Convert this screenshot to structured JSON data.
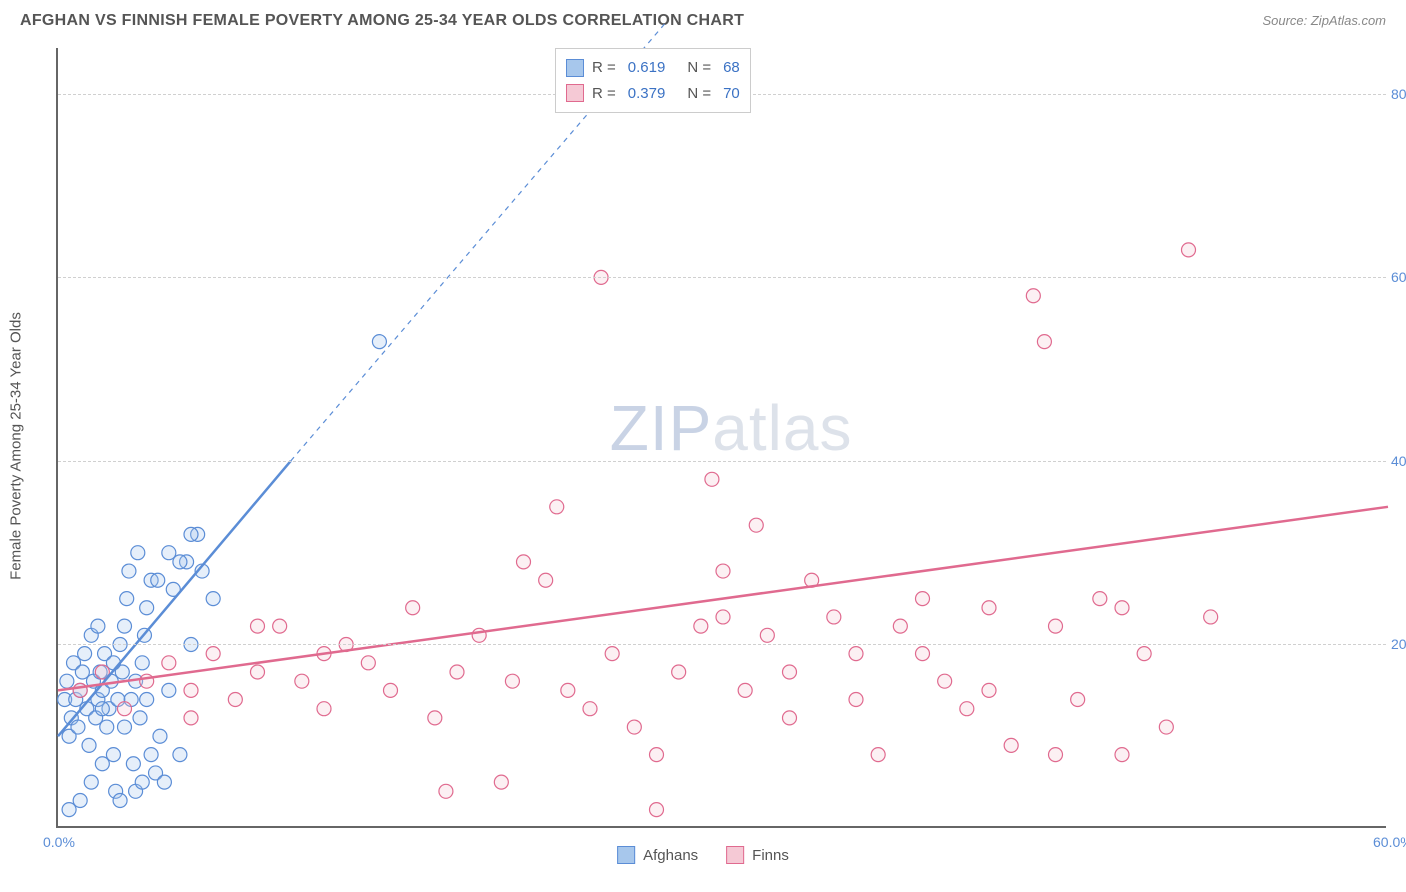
{
  "title": "AFGHAN VS FINNISH FEMALE POVERTY AMONG 25-34 YEAR OLDS CORRELATION CHART",
  "source": "Source: ZipAtlas.com",
  "watermark_a": "ZIP",
  "watermark_b": "atlas",
  "chart": {
    "type": "scatter",
    "ylabel": "Female Poverty Among 25-34 Year Olds",
    "xlim": [
      0,
      60
    ],
    "ylim": [
      0,
      85
    ],
    "xticks": [
      {
        "v": 0,
        "label": "0.0%"
      },
      {
        "v": 60,
        "label": "60.0%"
      }
    ],
    "yticks": [
      {
        "v": 20,
        "label": "20.0%"
      },
      {
        "v": 40,
        "label": "40.0%"
      },
      {
        "v": 60,
        "label": "60.0%"
      },
      {
        "v": 80,
        "label": "80.0%"
      }
    ],
    "grid_color": "#d0d0d0",
    "background_color": "#ffffff",
    "marker_radius": 7,
    "series": [
      {
        "name": "Afghans",
        "color_fill": "#a7c7ec",
        "color_stroke": "#5b8dd6",
        "R": "0.619",
        "N": "68",
        "trend": {
          "x1": 0,
          "y1": 10,
          "x2": 10.5,
          "y2": 40,
          "dash_x1": 10.5,
          "dash_y1": 40,
          "dash_x2": 27.5,
          "dash_y2": 88
        },
        "points": [
          [
            0.3,
            14
          ],
          [
            0.4,
            16
          ],
          [
            0.5,
            10
          ],
          [
            0.6,
            12
          ],
          [
            0.7,
            18
          ],
          [
            0.8,
            14
          ],
          [
            0.9,
            11
          ],
          [
            1.0,
            15
          ],
          [
            1.1,
            17
          ],
          [
            1.2,
            19
          ],
          [
            1.3,
            13
          ],
          [
            1.4,
            9
          ],
          [
            1.5,
            21
          ],
          [
            1.6,
            16
          ],
          [
            1.7,
            12
          ],
          [
            1.8,
            14
          ],
          [
            1.9,
            17
          ],
          [
            2.0,
            15
          ],
          [
            2.1,
            19
          ],
          [
            2.2,
            11
          ],
          [
            2.3,
            13
          ],
          [
            2.4,
            16
          ],
          [
            2.5,
            8
          ],
          [
            2.6,
            4
          ],
          [
            2.7,
            14
          ],
          [
            2.8,
            20
          ],
          [
            2.9,
            17
          ],
          [
            3.0,
            22
          ],
          [
            3.1,
            25
          ],
          [
            3.2,
            28
          ],
          [
            3.3,
            14
          ],
          [
            3.4,
            7
          ],
          [
            3.5,
            16
          ],
          [
            3.6,
            30
          ],
          [
            3.7,
            12
          ],
          [
            3.8,
            18
          ],
          [
            3.9,
            21
          ],
          [
            4.0,
            24
          ],
          [
            4.2,
            27
          ],
          [
            4.4,
            6
          ],
          [
            4.6,
            10
          ],
          [
            4.8,
            5
          ],
          [
            5.0,
            15
          ],
          [
            5.2,
            26
          ],
          [
            5.5,
            8
          ],
          [
            5.8,
            29
          ],
          [
            6.0,
            20
          ],
          [
            6.3,
            32
          ],
          [
            1.0,
            3
          ],
          [
            1.5,
            5
          ],
          [
            2.0,
            7
          ],
          [
            2.8,
            3
          ],
          [
            3.5,
            4
          ],
          [
            0.5,
            2
          ],
          [
            4.5,
            27
          ],
          [
            5.0,
            30
          ],
          [
            6.0,
            32
          ],
          [
            7.0,
            25
          ],
          [
            3.0,
            11
          ],
          [
            4.0,
            14
          ],
          [
            2.5,
            18
          ],
          [
            1.8,
            22
          ],
          [
            5.5,
            29
          ],
          [
            6.5,
            28
          ],
          [
            3.8,
            5
          ],
          [
            4.2,
            8
          ],
          [
            14.5,
            53
          ],
          [
            2.0,
            13
          ]
        ]
      },
      {
        "name": "Finns",
        "color_fill": "#f5c9d5",
        "color_stroke": "#e06a8f",
        "R": "0.379",
        "N": "70",
        "trend": {
          "x1": 0,
          "y1": 15,
          "x2": 60,
          "y2": 35
        },
        "points": [
          [
            1,
            15
          ],
          [
            2,
            17
          ],
          [
            3,
            13
          ],
          [
            4,
            16
          ],
          [
            5,
            18
          ],
          [
            6,
            15
          ],
          [
            7,
            19
          ],
          [
            8,
            14
          ],
          [
            9,
            17
          ],
          [
            10,
            22
          ],
          [
            11,
            16
          ],
          [
            12,
            13
          ],
          [
            13,
            20
          ],
          [
            14,
            18
          ],
          [
            15,
            15
          ],
          [
            16,
            24
          ],
          [
            17,
            12
          ],
          [
            17.5,
            4
          ],
          [
            18,
            17
          ],
          [
            19,
            21
          ],
          [
            20,
            5
          ],
          [
            20.5,
            16
          ],
          [
            21,
            29
          ],
          [
            22,
            27
          ],
          [
            22.5,
            35
          ],
          [
            23,
            15
          ],
          [
            24,
            13
          ],
          [
            24.5,
            60
          ],
          [
            25,
            19
          ],
          [
            26,
            11
          ],
          [
            27,
            8
          ],
          [
            28,
            17
          ],
          [
            29,
            22
          ],
          [
            29.5,
            38
          ],
          [
            30,
            28
          ],
          [
            31,
            15
          ],
          [
            31.5,
            33
          ],
          [
            32,
            21
          ],
          [
            33,
            12
          ],
          [
            34,
            27
          ],
          [
            35,
            23
          ],
          [
            36,
            19
          ],
          [
            37,
            8
          ],
          [
            38,
            22
          ],
          [
            39,
            25
          ],
          [
            40,
            16
          ],
          [
            41,
            13
          ],
          [
            42,
            24
          ],
          [
            43,
            9
          ],
          [
            44,
            58
          ],
          [
            44.5,
            53
          ],
          [
            45,
            22
          ],
          [
            46,
            14
          ],
          [
            47,
            25
          ],
          [
            48,
            8
          ],
          [
            49,
            19
          ],
          [
            50,
            11
          ],
          [
            51,
            63
          ],
          [
            52,
            23
          ],
          [
            27,
            2
          ],
          [
            30,
            23
          ],
          [
            33,
            17
          ],
          [
            36,
            14
          ],
          [
            39,
            19
          ],
          [
            42,
            15
          ],
          [
            45,
            8
          ],
          [
            48,
            24
          ],
          [
            6,
            12
          ],
          [
            9,
            22
          ],
          [
            12,
            19
          ]
        ]
      }
    ],
    "legend_top": {
      "rows": [
        {
          "sw_fill": "#a7c7ec",
          "sw_stroke": "#5b8dd6",
          "r_label": "R =",
          "r_val": "0.619",
          "n_label": "N =",
          "n_val": "68"
        },
        {
          "sw_fill": "#f5c9d5",
          "sw_stroke": "#e06a8f",
          "r_label": "R =",
          "r_val": "0.379",
          "n_label": "N =",
          "n_val": "70"
        }
      ]
    },
    "legend_bottom": [
      {
        "sw_fill": "#a7c7ec",
        "sw_stroke": "#5b8dd6",
        "label": "Afghans"
      },
      {
        "sw_fill": "#f5c9d5",
        "sw_stroke": "#e06a8f",
        "label": "Finns"
      }
    ]
  }
}
